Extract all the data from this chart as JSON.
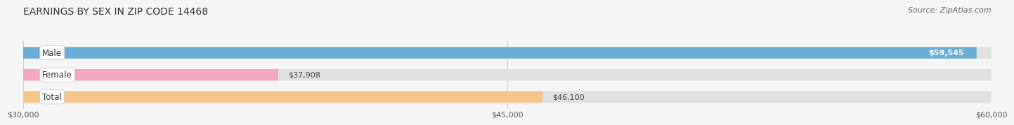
{
  "title": "EARNINGS BY SEX IN ZIP CODE 14468",
  "source": "Source: ZipAtlas.com",
  "categories": [
    "Male",
    "Female",
    "Total"
  ],
  "values": [
    59545,
    37908,
    46100
  ],
  "bar_colors": [
    "#6aaed6",
    "#f4a8c0",
    "#f5c58a"
  ],
  "bar_bg_color": "#e0e0e0",
  "value_labels": [
    "$59,545",
    "$37,908",
    "$46,100"
  ],
  "xmin": 30000,
  "xmax": 60000,
  "xticks": [
    30000,
    45000,
    60000
  ],
  "xtick_labels": [
    "$30,000",
    "$45,000",
    "$60,000"
  ],
  "background_color": "#f5f5f5",
  "bar_height": 0.52,
  "title_fontsize": 10,
  "label_fontsize": 8.5,
  "value_fontsize": 8,
  "source_fontsize": 8
}
